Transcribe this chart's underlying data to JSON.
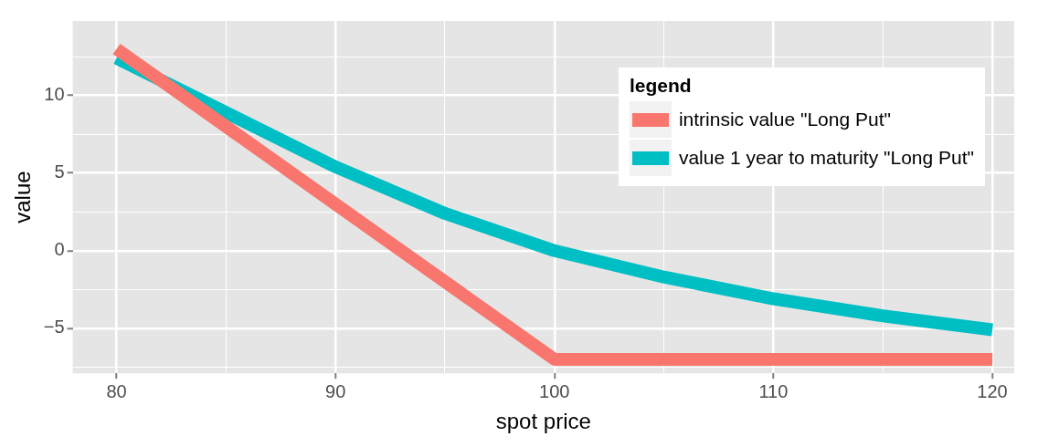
{
  "chart_data": {
    "type": "line",
    "xlabel": "spot price",
    "ylabel": "value",
    "legend_title": "legend",
    "legend": "top right",
    "grid": true,
    "xlim": [
      78,
      121
    ],
    "xticks": [
      80,
      {
        "value": 85,
        "label": null
      },
      90,
      {
        "value": 95,
        "label": null
      },
      100,
      {
        "value": 105,
        "label": null
      },
      110,
      {
        "value": 115,
        "label": null
      },
      120
    ],
    "ylim": [
      -7.9,
      14.8
    ],
    "yticks": [
      {
        "value": -7.5,
        "label": null
      },
      {
        "value": -5,
        "label": "−5"
      },
      {
        "value": -2.5,
        "label": null
      },
      0,
      {
        "value": 2.5,
        "label": null
      },
      5,
      {
        "value": 7.5,
        "label": null
      },
      10,
      {
        "value": 12.5,
        "label": null
      }
    ],
    "series": [
      {
        "name": "intrinsic value \"Long Put\"",
        "color": "#f8766d",
        "x": [
          80,
          100,
          120
        ],
        "values": [
          13,
          -7,
          -7
        ]
      },
      {
        "name": "value 1 year to maturity \"Long Put\"",
        "color": "#00bfc4",
        "x": [
          80,
          85,
          90,
          95,
          100,
          105,
          110,
          115,
          120
        ],
        "values": [
          12.4,
          8.9,
          5.4,
          2.4,
          0,
          -1.7,
          -3.1,
          -4.2,
          -5.1
        ]
      }
    ]
  }
}
